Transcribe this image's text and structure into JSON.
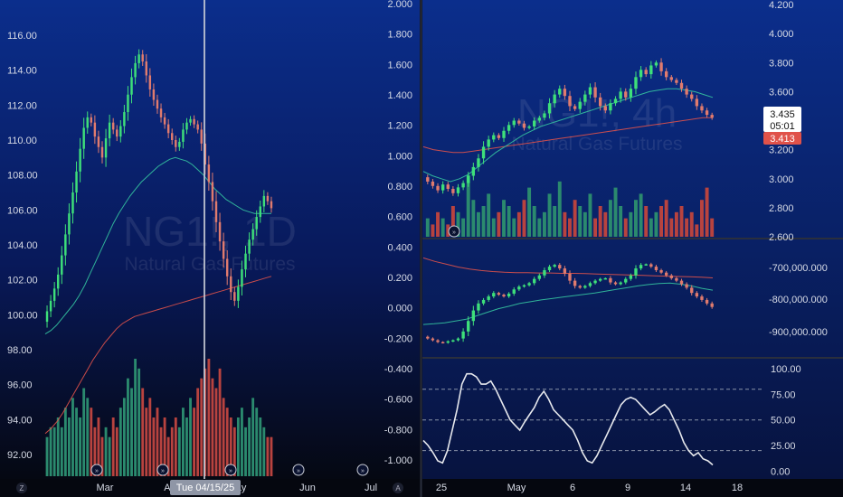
{
  "colors": {
    "bg_top": "#0b2e8c",
    "bg_bottom": "#050812",
    "bull": "#3ee07a",
    "bear": "#e07b6e",
    "vol_bull": "#2b8a6e",
    "vol_bear": "#b8433f",
    "ma_fast": "#35c4a0",
    "ma_slow": "#e0524a",
    "axis_text": "#d7dbe6",
    "badge_current": "#ffffff",
    "badge_last": "#e0524a"
  },
  "left_chart": {
    "symbol": "NG1!, 1D",
    "name": "Natural Gas Futures",
    "y_left_ticks": [
      "116.00",
      "114.00",
      "112.00",
      "110.00",
      "108.00",
      "106.00",
      "104.00",
      "102.00",
      "100.00",
      "98.00",
      "96.00",
      "94.00",
      "92.00"
    ],
    "y_right_ticks": [
      "2.000",
      "1.800",
      "1.600",
      "1.400",
      "1.200",
      "1.000",
      "0.800",
      "0.600",
      "0.400",
      "0.200",
      "0.000",
      "-0.200",
      "-0.400",
      "-0.600",
      "-0.800",
      "-1.000"
    ],
    "x_labels": [
      "Mar",
      "Ap",
      "May",
      "Jun",
      "Jul"
    ],
    "crosshair_label": "Tue 04/15/25",
    "tv_logo_text": "Z",
    "chart_data": {
      "type": "candlestick",
      "ylim": [
        91,
        117
      ],
      "closes": [
        100.2,
        100.8,
        101.5,
        102.3,
        103.4,
        104.6,
        105.8,
        107.0,
        108.2,
        109.5,
        110.7,
        111.3,
        111.0,
        110.2,
        109.6,
        109.0,
        110.1,
        111.0,
        110.6,
        110.2,
        110.8,
        111.6,
        112.6,
        113.6,
        114.4,
        114.9,
        114.5,
        113.7,
        112.9,
        112.3,
        111.8,
        111.3,
        110.9,
        110.4,
        110.0,
        109.6,
        109.9,
        110.6,
        111.0,
        111.2,
        110.9,
        110.6,
        109.8,
        108.6,
        107.6,
        106.5,
        105.3,
        104.2,
        103.2,
        102.2,
        101.3,
        100.8,
        101.6,
        102.6,
        103.5,
        104.3,
        104.9,
        105.6,
        106.2,
        106.8,
        106.5,
        106.1
      ],
      "ma_fast": [
        98.9,
        99.1,
        99.4,
        99.8,
        100.2,
        100.6,
        101.1,
        101.7,
        102.4,
        103.1,
        103.8,
        104.5,
        105.2,
        105.8,
        106.3,
        106.8,
        107.2,
        107.6,
        107.9,
        108.2,
        108.5,
        108.7,
        108.9,
        109.0,
        108.9,
        108.8,
        108.6,
        108.3,
        108.0,
        107.6,
        107.2,
        106.9,
        106.6,
        106.4,
        106.2,
        106.0,
        105.9,
        105.8,
        105.8,
        105.8,
        105.8
      ],
      "ma_slow": [
        93.2,
        93.5,
        93.9,
        94.4,
        95.0,
        95.6,
        96.2,
        96.8,
        97.4,
        97.9,
        98.4,
        98.8,
        99.2,
        99.5,
        99.7,
        99.9,
        100.0,
        100.1,
        100.2,
        100.3,
        100.4,
        100.5,
        100.6,
        100.7,
        100.8,
        100.9,
        101.0,
        101.1,
        101.2,
        101.3,
        101.4,
        101.5,
        101.6,
        101.7,
        101.8,
        101.9,
        102.0,
        102.1,
        102.2
      ],
      "volume": [
        4,
        5,
        5,
        6,
        5,
        7,
        6,
        8,
        7,
        6,
        9,
        8,
        7,
        5,
        6,
        4,
        5,
        4,
        6,
        5,
        7,
        8,
        10,
        9,
        12,
        11,
        9,
        7,
        8,
        6,
        7,
        5,
        6,
        4,
        5,
        6,
        5,
        7,
        6,
        8,
        7,
        9,
        10,
        11,
        12,
        10,
        9,
        11,
        8,
        7,
        6,
        5,
        6,
        7,
        5,
        6,
        8,
        7,
        6,
        5,
        4,
        4
      ]
    }
  },
  "right_top": {
    "symbol": "NG1!, 4h",
    "name": "Natural Gas Futures",
    "y_ticks": [
      "4.200",
      "4.000",
      "3.800",
      "3.600",
      "3.400",
      "3.200",
      "3.000",
      "2.800",
      "2.600"
    ],
    "price_current": "3.435",
    "countdown": "05:01",
    "price_last": "3.413",
    "chart_data": {
      "type": "candlestick",
      "ylim": [
        2.6,
        4.2
      ],
      "closes": [
        2.98,
        2.95,
        2.92,
        2.96,
        2.93,
        2.9,
        2.94,
        2.97,
        3.02,
        3.08,
        3.14,
        3.22,
        3.27,
        3.3,
        3.28,
        3.33,
        3.37,
        3.4,
        3.38,
        3.35,
        3.36,
        3.4,
        3.42,
        3.45,
        3.52,
        3.58,
        3.62,
        3.57,
        3.5,
        3.48,
        3.53,
        3.58,
        3.63,
        3.56,
        3.5,
        3.47,
        3.52,
        3.55,
        3.6,
        3.56,
        3.62,
        3.7,
        3.75,
        3.72,
        3.78,
        3.8,
        3.74,
        3.7,
        3.68,
        3.66,
        3.62,
        3.58,
        3.55,
        3.5,
        3.47,
        3.44,
        3.42
      ],
      "ma_fast": [
        3.05,
        3.02,
        3.0,
        2.98,
        3.0,
        3.03,
        3.08,
        3.13,
        3.18,
        3.22,
        3.26,
        3.3,
        3.33,
        3.36,
        3.38,
        3.4,
        3.42,
        3.44,
        3.46,
        3.48,
        3.5,
        3.52,
        3.54,
        3.56,
        3.58,
        3.6,
        3.61,
        3.62,
        3.62,
        3.61,
        3.6,
        3.58,
        3.56
      ],
      "ma_slow": [
        3.22,
        3.2,
        3.19,
        3.18,
        3.18,
        3.19,
        3.2,
        3.21,
        3.22,
        3.23,
        3.24,
        3.25,
        3.26,
        3.27,
        3.28,
        3.29,
        3.3,
        3.31,
        3.32,
        3.33,
        3.34,
        3.35,
        3.36,
        3.37,
        3.38,
        3.39,
        3.4,
        3.41,
        3.42,
        3.42
      ],
      "volume": [
        3,
        2,
        4,
        3,
        2,
        5,
        4,
        3,
        10,
        6,
        4,
        5,
        7,
        3,
        4,
        6,
        5,
        3,
        4,
        6,
        8,
        5,
        3,
        4,
        7,
        5,
        9,
        4,
        3,
        6,
        5,
        4,
        7,
        3,
        5,
        4,
        6,
        8,
        5,
        3,
        4,
        6,
        7,
        5,
        3,
        4,
        5,
        6,
        3,
        4,
        5,
        3,
        4,
        2,
        6,
        8,
        3
      ]
    }
  },
  "right_mid": {
    "y_ticks": [
      "-700,000.000",
      "-800,000.000",
      "-900,000.000"
    ],
    "chart_data": {
      "type": "candlestick",
      "ylim": [
        -950000,
        -620000
      ],
      "closes": [
        -900,
        -905,
        -910,
        -912,
        -908,
        -905,
        -900,
        -880,
        -850,
        -820,
        -800,
        -790,
        -780,
        -770,
        -775,
        -780,
        -772,
        -760,
        -752,
        -748,
        -742,
        -730,
        -720,
        -705,
        -695,
        -690,
        -700,
        -715,
        -735,
        -750,
        -755,
        -750,
        -742,
        -735,
        -730,
        -728,
        -740,
        -745,
        -740,
        -730,
        -720,
        -700,
        -690,
        -688,
        -695,
        -705,
        -712,
        -720,
        -728,
        -735,
        -745,
        -755,
        -770,
        -780,
        -790,
        -800,
        -810
      ],
      "ma_fast": [
        -860,
        -858,
        -855,
        -850,
        -845,
        -835,
        -825,
        -815,
        -808,
        -800,
        -795,
        -790,
        -786,
        -782,
        -778,
        -774,
        -770,
        -765,
        -760,
        -755,
        -750,
        -746,
        -743,
        -742,
        -745,
        -750,
        -757,
        -762
      ],
      "ma_slow": [
        -670,
        -680,
        -688,
        -696,
        -702,
        -706,
        -709,
        -711,
        -712,
        -712,
        -713,
        -713,
        -714,
        -714,
        -715,
        -716,
        -717,
        -718,
        -719,
        -720,
        -721,
        -722,
        -723,
        -724,
        -725,
        -727
      ]
    }
  },
  "right_bottom": {
    "y_ticks": [
      "100.00",
      "75.00",
      "50.00",
      "25.00",
      "0.00"
    ],
    "x_labels": [
      "25",
      "May",
      "6",
      "9",
      "14",
      "18"
    ],
    "tv_logo_text": "A",
    "chart_data": {
      "type": "line",
      "ylim": [
        -5,
        108
      ],
      "levels": [
        80,
        50,
        20
      ],
      "values": [
        30,
        25,
        18,
        10,
        8,
        20,
        40,
        60,
        85,
        95,
        95,
        92,
        85,
        85,
        88,
        80,
        70,
        60,
        50,
        45,
        40,
        48,
        55,
        62,
        72,
        78,
        70,
        60,
        55,
        50,
        45,
        40,
        30,
        18,
        10,
        8,
        15,
        25,
        35,
        45,
        55,
        65,
        70,
        72,
        70,
        65,
        60,
        55,
        58,
        62,
        65,
        60,
        50,
        40,
        28,
        20,
        15,
        18,
        12,
        10,
        6
      ]
    }
  }
}
